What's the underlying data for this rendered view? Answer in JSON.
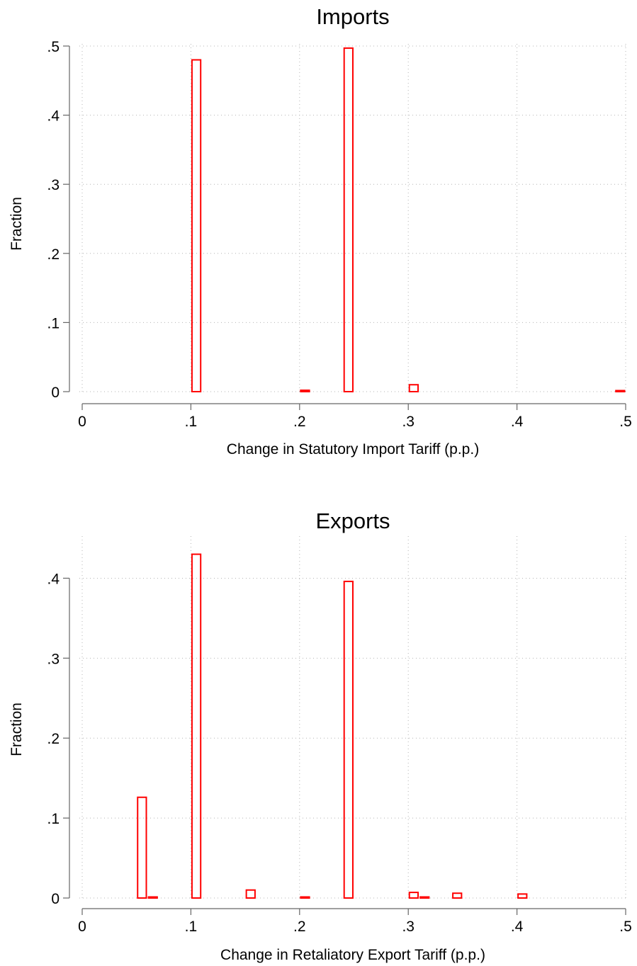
{
  "chart_data": [
    {
      "type": "bar",
      "title": "Imports",
      "xlabel": "Change in Statutory Import Tariff (p.p.)",
      "ylabel": "Fraction",
      "xlim": [
        0,
        0.5
      ],
      "ylim": [
        0,
        0.5
      ],
      "xticks": [
        "0",
        ".1",
        ".2",
        ".3",
        ".4",
        ".5"
      ],
      "yticks": [
        "0",
        ".1",
        ".2",
        ".3",
        ".4",
        ".5"
      ],
      "grid": true,
      "bar_color": "#ff0000",
      "bar_fill": "none",
      "bar_width": 0.008,
      "bars": [
        {
          "x": 0.105,
          "value": 0.48
        },
        {
          "x": 0.205,
          "value": 0.002
        },
        {
          "x": 0.245,
          "value": 0.497
        },
        {
          "x": 0.305,
          "value": 0.01
        },
        {
          "x": 0.495,
          "value": 0.001
        }
      ]
    },
    {
      "type": "bar",
      "title": "Exports",
      "xlabel": "Change in Retaliatory Export Tariff (p.p.)",
      "ylabel": "Fraction",
      "xlim": [
        0,
        0.5
      ],
      "ylim": [
        0,
        0.45
      ],
      "xticks": [
        "0",
        ".1",
        ".2",
        ".3",
        ".4",
        ".5"
      ],
      "yticks": [
        "0",
        ".1",
        ".2",
        ".3",
        ".4"
      ],
      "grid": true,
      "bar_color": "#ff0000",
      "bar_fill": "none",
      "bar_width": 0.008,
      "bars": [
        {
          "x": 0.055,
          "value": 0.126
        },
        {
          "x": 0.065,
          "value": 0.001
        },
        {
          "x": 0.105,
          "value": 0.43
        },
        {
          "x": 0.155,
          "value": 0.01
        },
        {
          "x": 0.205,
          "value": 0.001
        },
        {
          "x": 0.245,
          "value": 0.396
        },
        {
          "x": 0.305,
          "value": 0.007
        },
        {
          "x": 0.315,
          "value": 0.001
        },
        {
          "x": 0.345,
          "value": 0.006
        },
        {
          "x": 0.405,
          "value": 0.005
        }
      ]
    }
  ]
}
